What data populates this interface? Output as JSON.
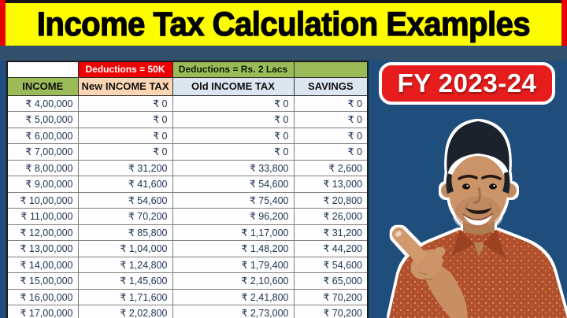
{
  "title": "Income Tax Calculation Examples",
  "badge": "FY 2023-24",
  "table": {
    "group_headers": {
      "income": "",
      "new_tax": "Deductions = 50K",
      "old_tax": "Deductions = Rs. 2 Lacs",
      "savings": ""
    },
    "column_headers": [
      "INCOME",
      "New INCOME TAX",
      "Old INCOME TAX",
      "SAVINGS"
    ],
    "rows": [
      [
        "₹ 4,00,000",
        "₹ 0",
        "₹ 0",
        "₹ 0"
      ],
      [
        "₹ 5,00,000",
        "₹ 0",
        "₹ 0",
        "₹ 0"
      ],
      [
        "₹ 6,00,000",
        "₹ 0",
        "₹ 0",
        "₹ 0"
      ],
      [
        "₹ 7,00,000",
        "₹ 0",
        "₹ 0",
        "₹ 0"
      ],
      [
        "₹ 8,00,000",
        "₹ 31,200",
        "₹ 33,800",
        "₹ 2,600"
      ],
      [
        "₹ 9,00,000",
        "₹ 41,600",
        "₹ 54,600",
        "₹ 13,000"
      ],
      [
        "₹ 10,00,000",
        "₹ 54,600",
        "₹ 75,400",
        "₹ 20,800"
      ],
      [
        "₹ 11,00,000",
        "₹ 70,200",
        "₹ 96,200",
        "₹ 26,000"
      ],
      [
        "₹ 12,00,000",
        "₹ 85,800",
        "₹ 1,17,000",
        "₹ 31,200"
      ],
      [
        "₹ 13,00,000",
        "₹ 1,04,000",
        "₹ 1,48,200",
        "₹ 44,200"
      ],
      [
        "₹ 14,00,000",
        "₹ 1,24,800",
        "₹ 1,79,400",
        "₹ 54,600"
      ],
      [
        "₹ 15,00,000",
        "₹ 1,45,600",
        "₹ 2,10,600",
        "₹ 65,000"
      ],
      [
        "₹ 16,00,000",
        "₹ 1,71,600",
        "₹ 2,41,800",
        "₹ 70,200"
      ],
      [
        "₹ 17,00,000",
        "₹ 2,02,800",
        "₹ 2,73,000",
        "₹ 70,200"
      ]
    ]
  },
  "person": {
    "alt": "Smiling presenter pointing at the tax table"
  },
  "colors": {
    "background": "#1f4e7c",
    "title_bg": "#fdfd00",
    "accent_red": "#e60000",
    "badge_red": "#e71c1c",
    "header_green": "#9bbb59",
    "header_peach": "#fcd5b4",
    "header_blue": "#dce6f1",
    "deductions_red": "#ee0000"
  }
}
